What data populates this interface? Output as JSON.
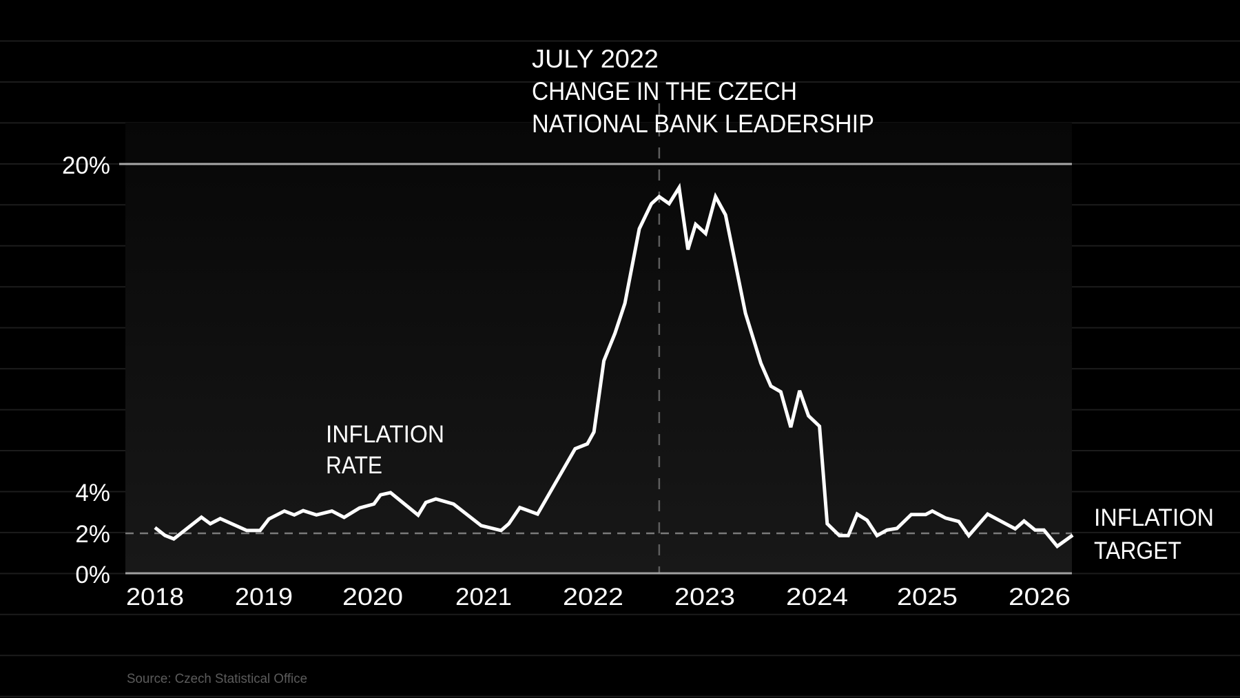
{
  "chart_data": {
    "type": "line",
    "title": "",
    "xlabel": "",
    "ylabel": "",
    "ylim": [
      0,
      20
    ],
    "xlim": [
      2018,
      2026.3
    ],
    "grid": true,
    "y_ticks": [
      {
        "value": 0,
        "label": "0%"
      },
      {
        "value": 2,
        "label": "2%"
      },
      {
        "value": 4,
        "label": "4%"
      },
      {
        "value": 20,
        "label": "20%"
      }
    ],
    "x_ticks": [
      {
        "value": 2018,
        "label": "2018"
      },
      {
        "value": 2019,
        "label": "2019"
      },
      {
        "value": 2020,
        "label": "2020"
      },
      {
        "value": 2021,
        "label": "2021"
      },
      {
        "value": 2022,
        "label": "2022"
      },
      {
        "value": 2023,
        "label": "2023"
      },
      {
        "value": 2024,
        "label": "2024"
      },
      {
        "value": 2025,
        "label": "2025"
      },
      {
        "value": 2026,
        "label": "2026"
      }
    ],
    "series": [
      {
        "name": "Inflation rate",
        "color": "#ffffff",
        "points": [
          [
            2018.0,
            2.23
          ],
          [
            2018.09,
            1.85
          ],
          [
            2018.17,
            1.68
          ],
          [
            2018.42,
            2.74
          ],
          [
            2018.5,
            2.42
          ],
          [
            2018.59,
            2.67
          ],
          [
            2018.83,
            2.09
          ],
          [
            2018.95,
            2.09
          ],
          [
            2019.03,
            2.65
          ],
          [
            2019.17,
            3.04
          ],
          [
            2019.26,
            2.85
          ],
          [
            2019.34,
            3.06
          ],
          [
            2019.46,
            2.85
          ],
          [
            2019.6,
            3.04
          ],
          [
            2019.71,
            2.73
          ],
          [
            2019.85,
            3.19
          ],
          [
            2019.98,
            3.38
          ],
          [
            2020.04,
            3.83
          ],
          [
            2020.13,
            3.94
          ],
          [
            2020.38,
            2.84
          ],
          [
            2020.45,
            3.46
          ],
          [
            2020.54,
            3.63
          ],
          [
            2020.7,
            3.38
          ],
          [
            2020.95,
            2.33
          ],
          [
            2021.13,
            2.09
          ],
          [
            2021.2,
            2.42
          ],
          [
            2021.3,
            3.21
          ],
          [
            2021.46,
            2.89
          ],
          [
            2021.8,
            6.08
          ],
          [
            2021.91,
            6.32
          ],
          [
            2021.97,
            6.9
          ],
          [
            2022.06,
            10.38
          ],
          [
            2022.16,
            11.72
          ],
          [
            2022.25,
            13.18
          ],
          [
            2022.38,
            16.82
          ],
          [
            2022.49,
            18.05
          ],
          [
            2022.56,
            18.39
          ],
          [
            2022.65,
            18.05
          ],
          [
            2022.74,
            18.83
          ],
          [
            2022.82,
            15.81
          ],
          [
            2022.89,
            17.04
          ],
          [
            2022.98,
            16.59
          ],
          [
            2023.07,
            18.39
          ],
          [
            2023.16,
            17.5
          ],
          [
            2023.34,
            12.7
          ],
          [
            2023.48,
            10.26
          ],
          [
            2023.57,
            9.14
          ],
          [
            2023.66,
            8.86
          ],
          [
            2023.75,
            7.13
          ],
          [
            2023.83,
            8.92
          ],
          [
            2023.91,
            7.69
          ],
          [
            2024.01,
            7.18
          ],
          [
            2024.08,
            2.42
          ],
          [
            2024.19,
            1.84
          ],
          [
            2024.27,
            1.84
          ],
          [
            2024.35,
            2.89
          ],
          [
            2024.44,
            2.59
          ],
          [
            2024.53,
            1.84
          ],
          [
            2024.62,
            2.11
          ],
          [
            2024.71,
            2.19
          ],
          [
            2024.84,
            2.87
          ],
          [
            2024.97,
            2.87
          ],
          [
            2025.03,
            3.04
          ],
          [
            2025.15,
            2.7
          ],
          [
            2025.27,
            2.53
          ],
          [
            2025.36,
            1.84
          ],
          [
            2025.53,
            2.89
          ],
          [
            2025.78,
            2.17
          ],
          [
            2025.86,
            2.55
          ],
          [
            2025.96,
            2.11
          ],
          [
            2026.04,
            2.11
          ],
          [
            2026.16,
            1.32
          ],
          [
            2026.3,
            1.86
          ]
        ]
      }
    ],
    "reference_lines": [
      {
        "type": "horizontal",
        "value": 2,
        "style": "dashed",
        "label": "INFLATION TARGET"
      },
      {
        "type": "vertical",
        "value": 2022.56,
        "style": "dashed",
        "label": "JULY 2022 CHANGE IN THE CZECH NATIONAL BANK LEADERSHIP"
      }
    ],
    "annotations": [
      "JULY 2022",
      "CHANGE IN THE CZECH",
      "NATIONAL BANK LEADERSHIP",
      "INFLATION RATE",
      "INFLATION TARGET"
    ],
    "source": "Source: Czech Statistical Office",
    "legend_position": "none"
  },
  "annotation": {
    "line1": "JULY 2022",
    "line2": "CHANGE IN THE CZECH",
    "line3": "NATIONAL BANK LEADERSHIP"
  },
  "series_label": {
    "line1": "INFLATION",
    "line2": "RATE"
  },
  "target_label": {
    "line1": "INFLATION",
    "line2": "TARGET"
  },
  "y_axis": {
    "t0": "0%",
    "t2": "2%",
    "t4": "4%",
    "t20": "20%"
  },
  "x_axis": [
    "2018",
    "2019",
    "2020",
    "2021",
    "2022",
    "2023",
    "2024",
    "2025",
    "2026"
  ],
  "source": "Source: Czech Statistical Office",
  "colors": {
    "background": "#000000",
    "line": "#ffffff",
    "axis": "#a6a6a6",
    "dashed": "#7a7a7a",
    "source_text": "#5c5c5c"
  }
}
